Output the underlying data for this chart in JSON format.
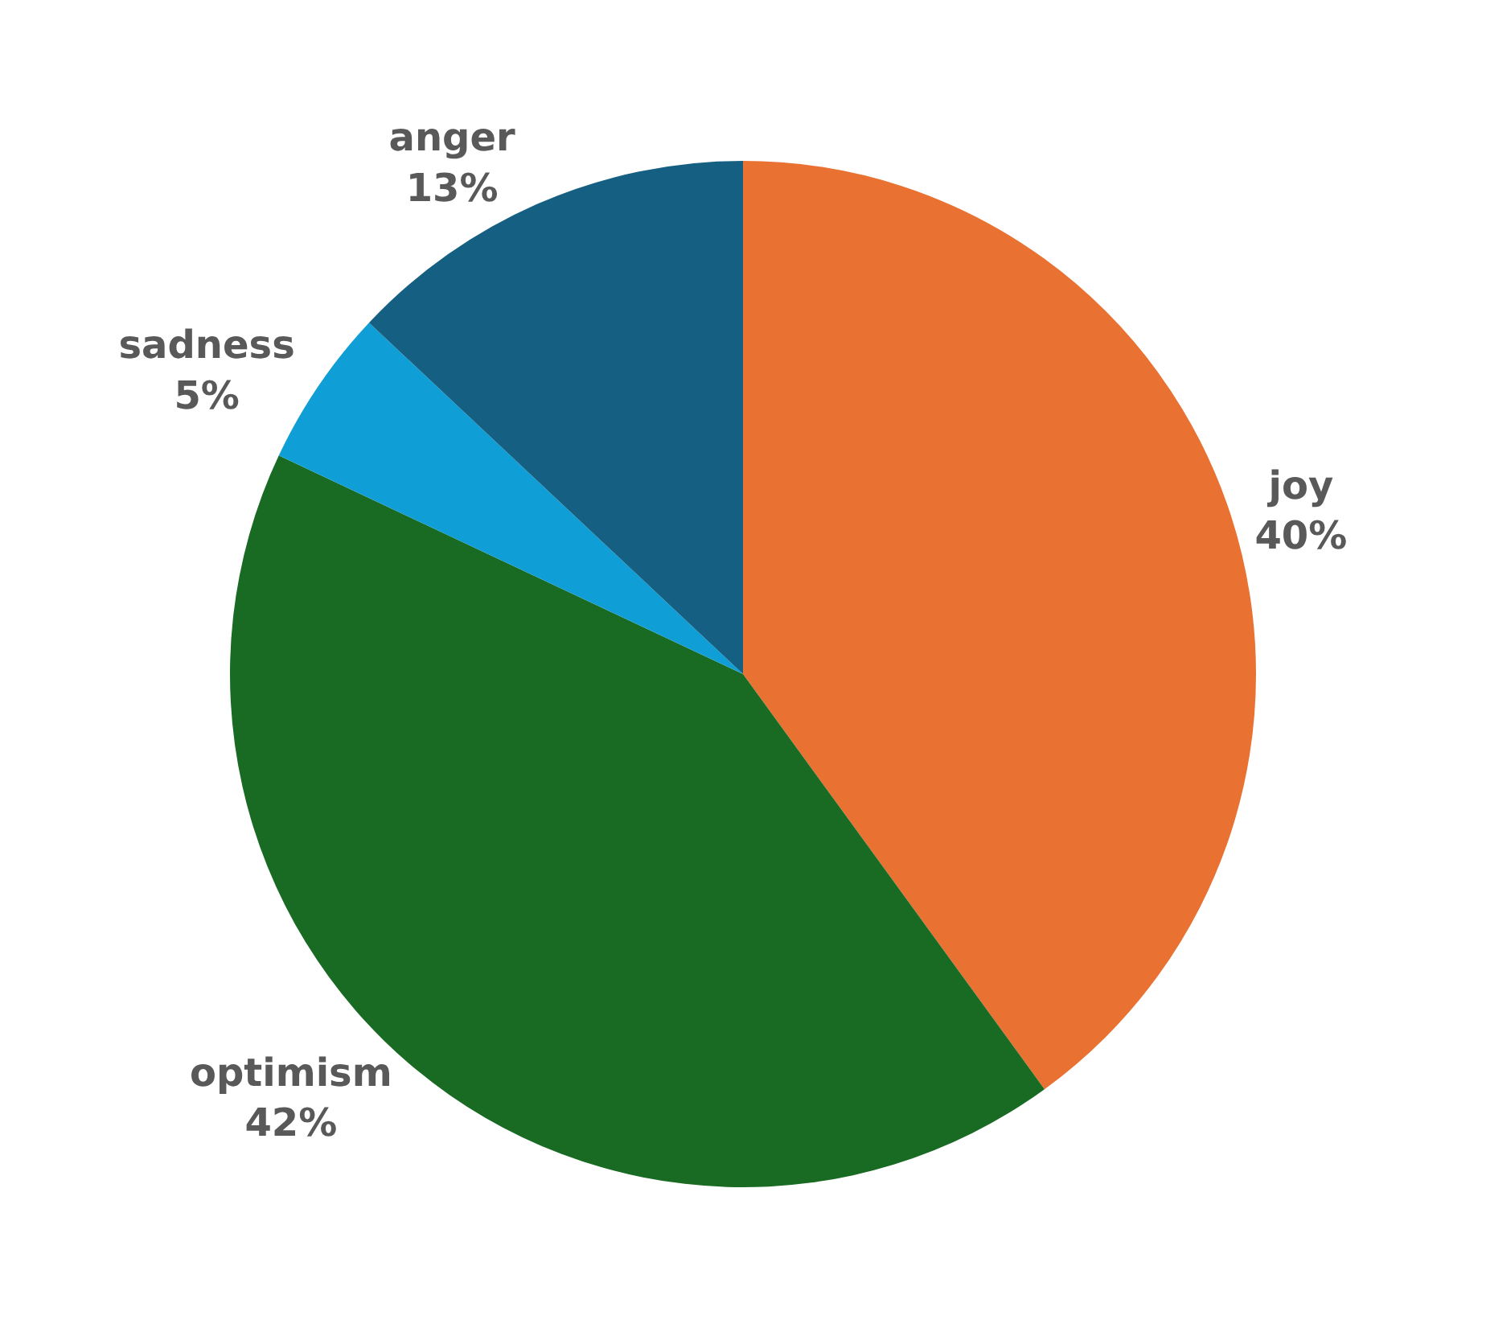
{
  "chart_data": {
    "type": "pie",
    "categories": [
      "joy",
      "optimism",
      "sadness",
      "anger"
    ],
    "values": [
      40,
      42,
      5,
      13
    ],
    "value_labels": [
      "40%",
      "42%",
      "5%",
      "13%"
    ],
    "colors": [
      "#e97132",
      "#196b24",
      "#0f9ed5",
      "#156082"
    ]
  }
}
